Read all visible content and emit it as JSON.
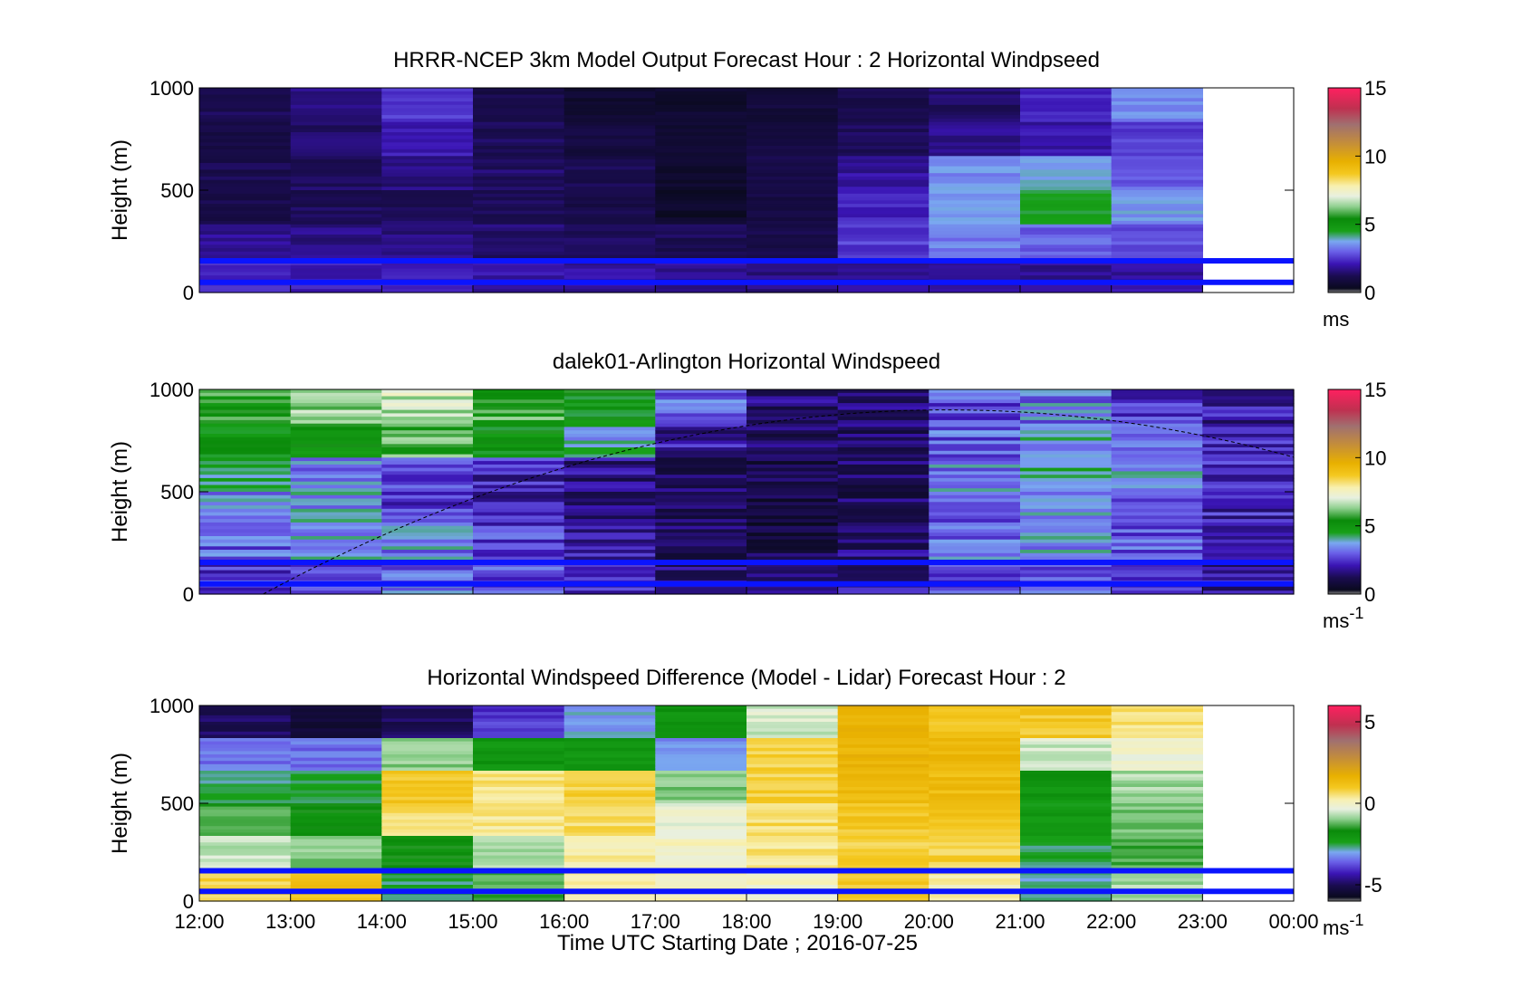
{
  "chart_data": [
    {
      "type": "heatmap",
      "title": "HRRR-NCEP 3km Model Output   Forecast Hour : 2 Horizontal Windpseed",
      "ylabel": "Height (m)",
      "xlabel": "",
      "ylim": [
        0,
        1000
      ],
      "yticks": [
        "0",
        "500",
        "1000"
      ],
      "colorbar": {
        "ticks": [
          "0",
          "5",
          "10",
          "15"
        ],
        "range": [
          0,
          15
        ],
        "unit": "ms",
        "unit_sup": ""
      },
      "x_hours": [
        12,
        13,
        14,
        15,
        16,
        17,
        18,
        19,
        20,
        21,
        22
      ],
      "approx_values": [
        [
          1.2,
          1.6,
          2.6,
          1.0,
          0.5,
          0.4,
          0.7,
          1.0,
          1.4,
          2.4,
          3.5
        ],
        [
          1.0,
          1.4,
          2.2,
          1.2,
          0.8,
          0.6,
          0.9,
          1.3,
          1.7,
          2.0,
          2.6
        ],
        [
          1.1,
          1.3,
          1.6,
          1.4,
          1.1,
          0.5,
          1.0,
          1.9,
          3.5,
          3.8,
          3.0
        ],
        [
          1.0,
          1.2,
          1.3,
          1.2,
          1.0,
          0.3,
          0.9,
          2.3,
          3.6,
          4.4,
          3.6
        ],
        [
          1.8,
          1.7,
          1.6,
          1.5,
          1.3,
          1.2,
          1.1,
          2.6,
          3.3,
          3.0,
          2.8
        ],
        [
          2.4,
          2.2,
          2.1,
          2.0,
          1.9,
          1.8,
          1.7,
          1.9,
          2.0,
          1.8,
          1.9
        ]
      ]
    },
    {
      "type": "heatmap",
      "title": "dalek01-Arlington  Horizontal Windspeed",
      "ylabel": "Height (m)",
      "xlabel": "",
      "ylim": [
        0,
        1000
      ],
      "yticks": [
        "0",
        "500",
        "1000"
      ],
      "colorbar": {
        "ticks": [
          "0",
          "5",
          "10",
          "15"
        ],
        "range": [
          0,
          15
        ],
        "unit": "ms",
        "unit_sup": "-1"
      },
      "x_hours": [
        12,
        13,
        14,
        15,
        16,
        17,
        18,
        19,
        20,
        21,
        22,
        23
      ],
      "approx_values": [
        [
          5.5,
          6.5,
          6.8,
          5.8,
          5.0,
          3.2,
          1.5,
          1.6,
          2.8,
          3.3,
          2.4,
          2.0
        ],
        [
          5.0,
          5.3,
          5.8,
          4.8,
          4.0,
          2.0,
          1.2,
          1.4,
          3.0,
          3.8,
          3.4,
          2.4
        ],
        [
          4.2,
          3.2,
          2.6,
          2.2,
          1.6,
          1.2,
          1.0,
          1.3,
          3.4,
          4.0,
          3.4,
          2.3
        ],
        [
          3.4,
          3.6,
          2.6,
          2.2,
          1.5,
          1.0,
          0.8,
          1.2,
          3.0,
          3.6,
          3.0,
          2.2
        ],
        [
          3.0,
          3.6,
          3.4,
          2.6,
          2.0,
          1.2,
          0.9,
          1.5,
          3.2,
          3.4,
          2.8,
          2.2
        ],
        [
          2.6,
          3.0,
          3.2,
          2.8,
          2.2,
          1.6,
          1.2,
          1.8,
          2.8,
          3.0,
          2.6,
          2.0
        ]
      ]
    },
    {
      "type": "heatmap",
      "title": "Horizontal Windspeed Difference (Model - Lidar) Forecast Hour : 2",
      "ylabel": "Height (m)",
      "xlabel": "Time UTC  Starting Date ; 2016-07-25",
      "ylim": [
        0,
        1000
      ],
      "yticks": [
        "0",
        "500",
        "1000"
      ],
      "xticks": [
        "12:00",
        "13:00",
        "14:00",
        "15:00",
        "16:00",
        "17:00",
        "18:00",
        "19:00",
        "20:00",
        "21:00",
        "22:00",
        "23:00",
        "00:00"
      ],
      "colorbar": {
        "ticks": [
          "-5",
          "0",
          "5"
        ],
        "range": [
          -6,
          6
        ],
        "unit": "ms",
        "unit_sup": "-1"
      },
      "x_hours": [
        12,
        13,
        14,
        15,
        16,
        17,
        18,
        19,
        20,
        21,
        22
      ],
      "approx_values": [
        [
          -5.0,
          -5.5,
          -5.0,
          -4.0,
          -3.0,
          -2.0,
          -0.5,
          1.5,
          1.0,
          1.0,
          0.5
        ],
        [
          -3.5,
          -3.5,
          -1.0,
          -2.0,
          -2.0,
          -3.2,
          0.8,
          1.6,
          1.5,
          -0.5,
          -0.2
        ],
        [
          -2.6,
          -2.4,
          1.0,
          0.5,
          0.8,
          -1.0,
          0.8,
          1.4,
          1.3,
          -2.0,
          -0.8
        ],
        [
          -1.4,
          -1.8,
          0.6,
          0.4,
          0.6,
          -0.2,
          0.6,
          1.0,
          1.1,
          -2.2,
          -1.2
        ],
        [
          -0.6,
          -1.0,
          -1.8,
          -0.8,
          0.3,
          0.0,
          0.5,
          0.8,
          0.8,
          -2.5,
          -1.4
        ],
        [
          0.8,
          1.2,
          -2.6,
          -1.4,
          0.4,
          0.2,
          0.0,
          0.9,
          0.2,
          -2.8,
          -0.8
        ]
      ]
    }
  ]
}
